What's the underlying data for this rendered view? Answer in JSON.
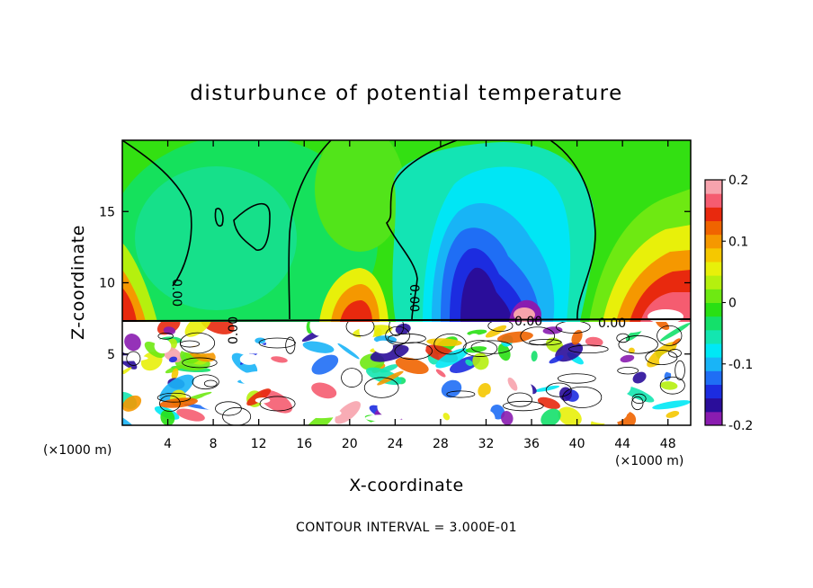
{
  "chart_data": {
    "type": "heatmap",
    "title": "disturbunce of potential temperature",
    "xlabel": "X-coordinate",
    "ylabel": "Z-coordinate",
    "x_unit_label": "(×1000 m)",
    "z_unit_label": "(×1000 m)",
    "footer": "CONTOUR INTERVAL = 3.000E-01",
    "xlim": [
      0,
      50
    ],
    "ylim": [
      0,
      20
    ],
    "x_ticks": [
      "4",
      "8",
      "12",
      "16",
      "20",
      "24",
      "28",
      "32",
      "36",
      "40",
      "44",
      "48"
    ],
    "y_ticks": [
      "5",
      "10",
      "15"
    ],
    "colorbar": {
      "range": [
        -0.2,
        0.2
      ],
      "tick_labels": [
        "0.2",
        "0.1",
        "0",
        "-0.1",
        "-0.2"
      ],
      "colors": [
        "#8a1cb0",
        "#2a0d9a",
        "#1c2ce0",
        "#1f6ef5",
        "#19b4f7",
        "#00e8f5",
        "#13e6b0",
        "#14e06a",
        "#29e013",
        "#6ee912",
        "#b5f00e",
        "#e8f00a",
        "#f5c800",
        "#f59800",
        "#f06400",
        "#e8290e",
        "#f55c70",
        "#f7a3ad"
      ]
    },
    "contour_labels": [
      "0.00",
      "0.00",
      "0.00",
      "0.00",
      "0.00"
    ]
  },
  "colors": {
    "zero_contour": "#000000",
    "background": "#ffffff"
  }
}
